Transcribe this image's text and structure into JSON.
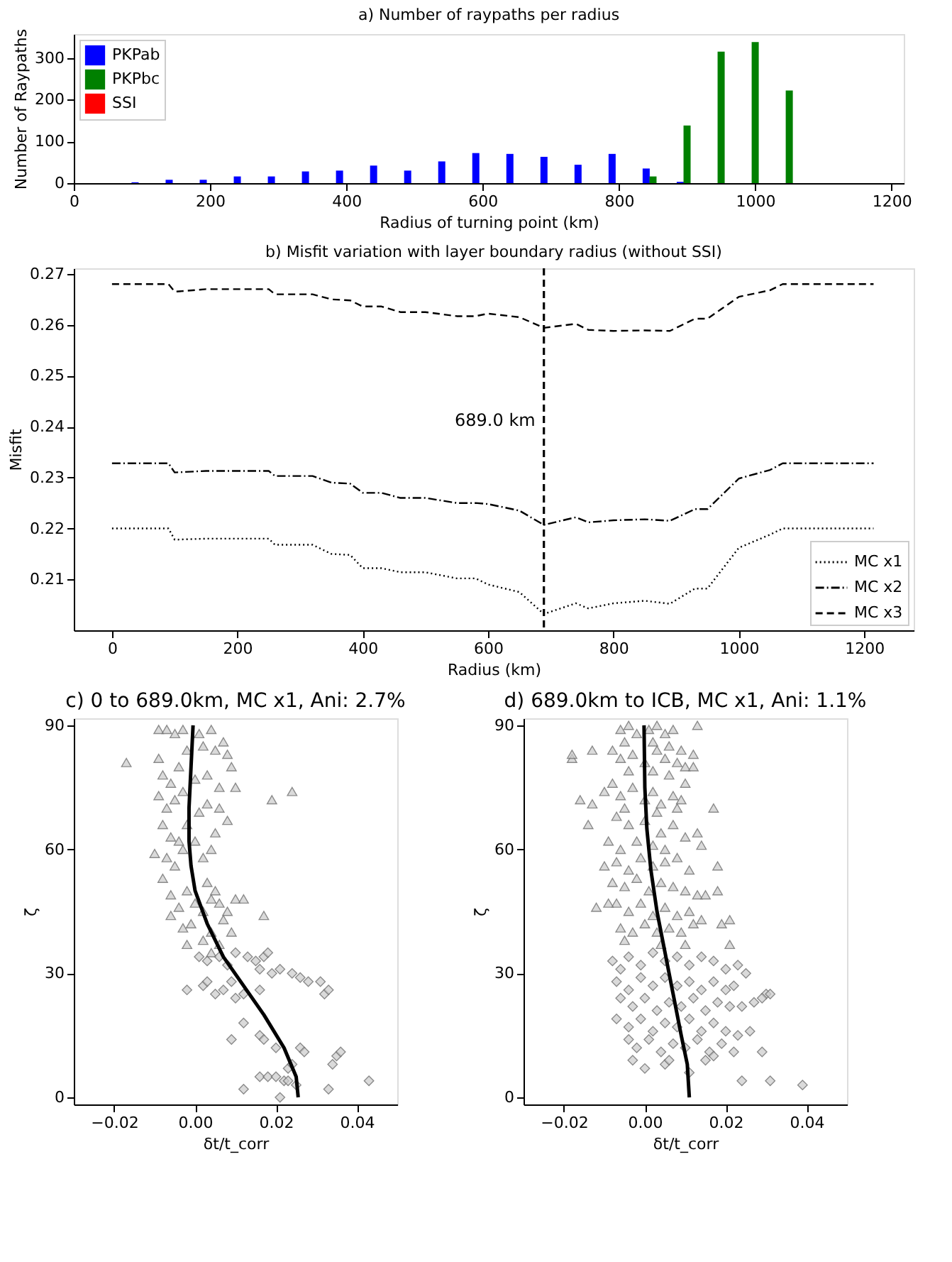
{
  "chart_data": [
    {
      "type": "bar",
      "title": "a) Number of raypaths per radius",
      "xlabel": "Radius of turning point (km)",
      "ylabel": "Number of Raypaths",
      "xlim": [
        0,
        1218
      ],
      "xticks": [
        0,
        200,
        400,
        600,
        800,
        1000,
        1200
      ],
      "ylim": [
        0,
        357
      ],
      "yticks": [
        0,
        100,
        200,
        300
      ],
      "grid": false,
      "legend": "top left",
      "series": [
        {
          "name": "PKPab",
          "color": "#0000ff",
          "x": [
            90,
            140,
            190,
            240,
            290,
            340,
            390,
            440,
            490,
            540,
            590,
            640,
            690,
            740,
            790,
            840,
            890
          ],
          "values": [
            2,
            8,
            8,
            16,
            16,
            28,
            30,
            42,
            30,
            52,
            72,
            70,
            63,
            44,
            70,
            35,
            3
          ]
        },
        {
          "name": "PKPbc",
          "color": "#008000",
          "x": [
            850,
            900,
            950,
            1000,
            1050
          ],
          "values": [
            16,
            138,
            315,
            338,
            222
          ]
        },
        {
          "name": "SSI",
          "color": "#ff0000"
        }
      ]
    },
    {
      "type": "line",
      "title": "b) Misfit variation with layer boundary radius (without SSI)",
      "xlabel": "Radius (km)",
      "ylabel": "Misfit",
      "xlim": [
        -61,
        1279
      ],
      "xticks": [
        0,
        200,
        400,
        600,
        800,
        1000,
        1200
      ],
      "ylim": [
        0.2,
        0.2711
      ],
      "yticks": [
        0.21,
        0.22,
        0.23,
        0.24,
        0.25,
        0.26,
        0.27
      ],
      "grid": false,
      "legend": "bottom right",
      "x": [
        0,
        90,
        100,
        150,
        250,
        260,
        320,
        350,
        380,
        400,
        430,
        460,
        500,
        550,
        580,
        600,
        650,
        689,
        740,
        760,
        800,
        850,
        890,
        930,
        950,
        1000,
        1050,
        1070,
        1215
      ],
      "series": [
        {
          "name": "MC x1",
          "color": "#000000",
          "line_style": "dotted",
          "values": [
            0.22,
            0.22,
            0.2178,
            0.218,
            0.218,
            0.2168,
            0.2168,
            0.215,
            0.2148,
            0.2122,
            0.2122,
            0.2114,
            0.2114,
            0.2102,
            0.2102,
            0.209,
            0.2075,
            0.2032,
            0.2053,
            0.2043,
            0.2053,
            0.2058,
            0.2052,
            0.2082,
            0.2082,
            0.2162,
            0.2188,
            0.22,
            0.22
          ]
        },
        {
          "name": "MC x2",
          "color": "#000000",
          "line_style": "dashdot",
          "values": [
            0.2328,
            0.2328,
            0.231,
            0.2313,
            0.2313,
            0.2303,
            0.2303,
            0.229,
            0.2288,
            0.227,
            0.227,
            0.226,
            0.226,
            0.225,
            0.225,
            0.2248,
            0.2235,
            0.2207,
            0.2222,
            0.2212,
            0.2216,
            0.2218,
            0.2215,
            0.2238,
            0.2238,
            0.2298,
            0.2315,
            0.2328,
            0.2328
          ]
        },
        {
          "name": "MC x3",
          "color": "#000000",
          "line_style": "dashed",
          "values": [
            0.268,
            0.268,
            0.2665,
            0.267,
            0.267,
            0.266,
            0.266,
            0.265,
            0.2648,
            0.2636,
            0.2636,
            0.2625,
            0.2625,
            0.2617,
            0.2617,
            0.2622,
            0.2615,
            0.2594,
            0.2602,
            0.259,
            0.2588,
            0.2589,
            0.2588,
            0.2612,
            0.2612,
            0.2655,
            0.2668,
            0.268,
            0.268
          ]
        }
      ],
      "ref_lines": [
        {
          "axis": "x",
          "value": 689,
          "label": "689.0 km",
          "color": "#000000",
          "line_style": "dashed"
        }
      ]
    },
    {
      "type": "scatter",
      "title": "c) 0 to 689.0km, MC x1, Ani: 2.7%",
      "xlabel": "δt/t_corr",
      "legend": false,
      "ylabel": "ζ",
      "xlim": [
        -0.03,
        0.05
      ],
      "xticks": [
        {
          "value": -0.02,
          "label": "−0.02"
        },
        {
          "value": 0,
          "label": "0.00"
        },
        {
          "value": 0.02,
          "label": "0.02"
        },
        {
          "value": 0.04,
          "label": "0.04"
        }
      ],
      "ylim": [
        -1.7,
        91.7
      ],
      "yticks": [
        0,
        30,
        60,
        90
      ],
      "grid": false,
      "series": [
        {
          "type": "scatter",
          "marker": "triangle",
          "color": "#cccccc",
          "x": [
            -0.017,
            -0.01,
            -0.009,
            -0.007,
            -0.005,
            -0.003,
            0.001,
            0.004,
            -0.009,
            -0.008,
            -0.006,
            -0.004,
            -0.002,
            0.002,
            0.005,
            0.007,
            0.008,
            0.009,
            -0.009,
            -0.007,
            -0.005,
            -0.003,
            0.0,
            0.003,
            0.006,
            0.01,
            0.019,
            0.024,
            -0.008,
            -0.006,
            -0.004,
            -0.002,
            0.001,
            0.003,
            0.006,
            0.008,
            -0.007,
            -0.005,
            -0.003,
            0.0,
            0.002,
            0.004,
            0.005,
            -0.008,
            -0.006,
            -0.004,
            -0.002,
            0.0,
            0.002,
            0.004,
            0.006,
            0.008,
            0.01,
            0.012,
            0.017,
            -0.006,
            -0.003,
            -0.001,
            0.002,
            0.004,
            0.006,
            0.009,
            0.003,
            0.005,
            0.007,
            -0.002,
            0.004
          ],
          "values": [
            81,
            59,
            89,
            89,
            88,
            89,
            88,
            89,
            82,
            78,
            76,
            80,
            84,
            85,
            84,
            86,
            83,
            80,
            73,
            70,
            72,
            74,
            77,
            78,
            75,
            75,
            72,
            74,
            66,
            63,
            62,
            66,
            69,
            71,
            70,
            67,
            58,
            56,
            60,
            62,
            58,
            60,
            64,
            53,
            49,
            46,
            50,
            47,
            45,
            48,
            47,
            45,
            48,
            48,
            44,
            44,
            41,
            42,
            38,
            40,
            37,
            40,
            52,
            50,
            43,
            37,
            35
          ]
        },
        {
          "type": "scatter",
          "marker": "diamond",
          "color": "#cccccc",
          "x": [
            0.001,
            0.003,
            0.006,
            0.008,
            0.01,
            0.013,
            0.015,
            0.017,
            0.018,
            0.016,
            0.019,
            0.021,
            0.024,
            0.026,
            0.028,
            0.031,
            0.032,
            0.033,
            -0.002,
            0.002,
            0.003,
            0.005,
            0.007,
            0.01,
            0.012,
            0.016,
            0.009,
            0.012,
            0.009,
            0.016,
            0.017,
            0.02,
            0.026,
            0.027,
            0.035,
            0.036,
            0.034,
            0.033,
            0.016,
            0.018,
            0.02,
            0.022,
            0.023,
            0.025,
            0.021,
            0.012,
            0.043,
            0.023,
            0.024
          ],
          "values": [
            34,
            33,
            34,
            32,
            35,
            34,
            33,
            34,
            35,
            31,
            30,
            31,
            30,
            29,
            28,
            28,
            25,
            26,
            26,
            27,
            28,
            25,
            26,
            24,
            25,
            26,
            28,
            18,
            14,
            15,
            14,
            12,
            12,
            11,
            10,
            11,
            8,
            2,
            5,
            5,
            5,
            4,
            4,
            3,
            0,
            2,
            4,
            7,
            8
          ]
        },
        {
          "type": "line",
          "color": "#000000",
          "x": [
            0.0255,
            0.025,
            0.022,
            0.017,
            0.012,
            0.007,
            0.003,
            0.0,
            -0.001,
            -0.0015,
            -0.0015,
            -0.001,
            -0.0005
          ],
          "values": [
            0,
            5,
            12,
            20,
            27,
            34,
            42,
            50,
            56,
            62,
            70,
            80,
            90
          ]
        }
      ]
    },
    {
      "type": "scatter",
      "title": "d) 689.0km to ICB, MC x1, Ani: 1.1%",
      "xlabel": "δt/t_corr",
      "legend": false,
      "ylabel": "ζ",
      "xlim": [
        -0.03,
        0.05
      ],
      "xticks": [
        {
          "value": -0.02,
          "label": "−0.02"
        },
        {
          "value": 0,
          "label": "0.00"
        },
        {
          "value": 0.02,
          "label": "0.02"
        },
        {
          "value": 0.04,
          "label": "0.04"
        }
      ],
      "ylim": [
        -1.7,
        91.7
      ],
      "yticks": [
        0,
        30,
        60,
        90
      ],
      "grid": false,
      "series": [
        {
          "type": "scatter",
          "marker": "triangle",
          "color": "#cccccc",
          "x": [
            -0.006,
            -0.004,
            -0.002,
            0.001,
            0.003,
            0.005,
            0.007,
            -0.005,
            0.002,
            0.006,
            0.009,
            -0.008,
            -0.006,
            -0.003,
            0.0,
            0.003,
            0.005,
            0.008,
            -0.004,
            0.002,
            0.006,
            0.01,
            -0.008,
            -0.006,
            -0.003,
            0.0,
            0.002,
            0.004,
            0.007,
            0.009,
            -0.005,
            0.003,
            0.008,
            -0.007,
            -0.004,
            0.0,
            0.004,
            0.007,
            0.01,
            -0.002,
            0.002,
            0.005,
            -0.009,
            -0.006,
            -0.01,
            -0.007,
            -0.004,
            -0.001,
            0.002,
            0.005,
            0.008,
            0.011,
            -0.008,
            -0.005,
            -0.002,
            0.001,
            0.004,
            0.007,
            0.01,
            0.013,
            -0.007,
            -0.004,
            -0.001,
            0.002,
            0.005,
            0.008,
            0.011,
            0.014,
            -0.006,
            -0.003,
            0.0,
            0.003,
            0.006,
            0.009,
            0.012,
            -0.005,
            0.004,
            0.01,
            -0.018,
            -0.018,
            -0.013,
            -0.016,
            -0.013,
            -0.014,
            -0.01,
            -0.012,
            -0.009,
            0.013,
            0.012,
            0.017,
            0.018,
            0.014,
            0.013,
            0.015,
            0.018,
            0.019,
            0.021,
            0.021,
            0.012,
            0.01
          ],
          "values": [
            89,
            90,
            88,
            89,
            90,
            88,
            89,
            86,
            86,
            85,
            84,
            84,
            82,
            83,
            81,
            84,
            82,
            81,
            79,
            79,
            78,
            80,
            76,
            73,
            75,
            72,
            74,
            71,
            73,
            72,
            70,
            69,
            70,
            68,
            66,
            67,
            64,
            66,
            63,
            62,
            61,
            60,
            62,
            60,
            56,
            57,
            55,
            58,
            56,
            57,
            58,
            55,
            52,
            51,
            53,
            50,
            52,
            51,
            50,
            49,
            47,
            45,
            47,
            44,
            46,
            44,
            45,
            43,
            41,
            40,
            42,
            40,
            41,
            40,
            42,
            38,
            37,
            37,
            82,
            83,
            84,
            72,
            71,
            66,
            74,
            46,
            47,
            90,
            83,
            70,
            56,
            61,
            64,
            49,
            50,
            42,
            43,
            37,
            80,
            76
          ]
        },
        {
          "type": "scatter",
          "marker": "diamond",
          "color": "#cccccc",
          "x": [
            -0.008,
            -0.006,
            -0.004,
            -0.001,
            0.002,
            0.005,
            0.008,
            0.011,
            0.014,
            0.017,
            0.02,
            0.023,
            0.025,
            -0.007,
            -0.004,
            -0.001,
            0.002,
            0.005,
            0.008,
            0.011,
            0.014,
            0.017,
            0.02,
            0.022,
            -0.006,
            -0.003,
            0.0,
            0.003,
            0.006,
            0.009,
            0.012,
            0.015,
            0.018,
            0.021,
            0.024,
            0.027,
            0.03,
            0.029,
            0.031,
            -0.007,
            -0.004,
            -0.001,
            0.002,
            0.005,
            0.008,
            0.011,
            0.014,
            0.017,
            0.02,
            0.023,
            0.026,
            -0.004,
            -0.002,
            0.001,
            0.004,
            0.007,
            0.01,
            0.013,
            0.016,
            0.019,
            0.022,
            0.029,
            -0.003,
            0.0,
            0.005,
            0.006,
            0.011,
            0.015,
            0.017,
            0.024,
            0.031,
            0.039
          ],
          "values": [
            33,
            31,
            34,
            32,
            35,
            33,
            34,
            32,
            34,
            33,
            31,
            32,
            30,
            28,
            26,
            29,
            27,
            29,
            27,
            28,
            26,
            28,
            26,
            27,
            24,
            22,
            24,
            21,
            23,
            22,
            24,
            21,
            23,
            22,
            22,
            23,
            25,
            24,
            25,
            19,
            17,
            19,
            16,
            18,
            17,
            19,
            16,
            18,
            16,
            15,
            16,
            14,
            12,
            14,
            11,
            13,
            12,
            14,
            11,
            13,
            11,
            11,
            9,
            7,
            8,
            9,
            6,
            9,
            10,
            4,
            4,
            3
          ]
        },
        {
          "type": "line",
          "color": "#000000",
          "x": [
            0.011,
            0.0105,
            0.009,
            0.007,
            0.005,
            0.003,
            0.0015,
            0.0005,
            0.0,
            -0.0002
          ],
          "values": [
            0,
            8,
            15,
            25,
            35,
            45,
            55,
            65,
            75,
            90
          ]
        }
      ]
    }
  ]
}
